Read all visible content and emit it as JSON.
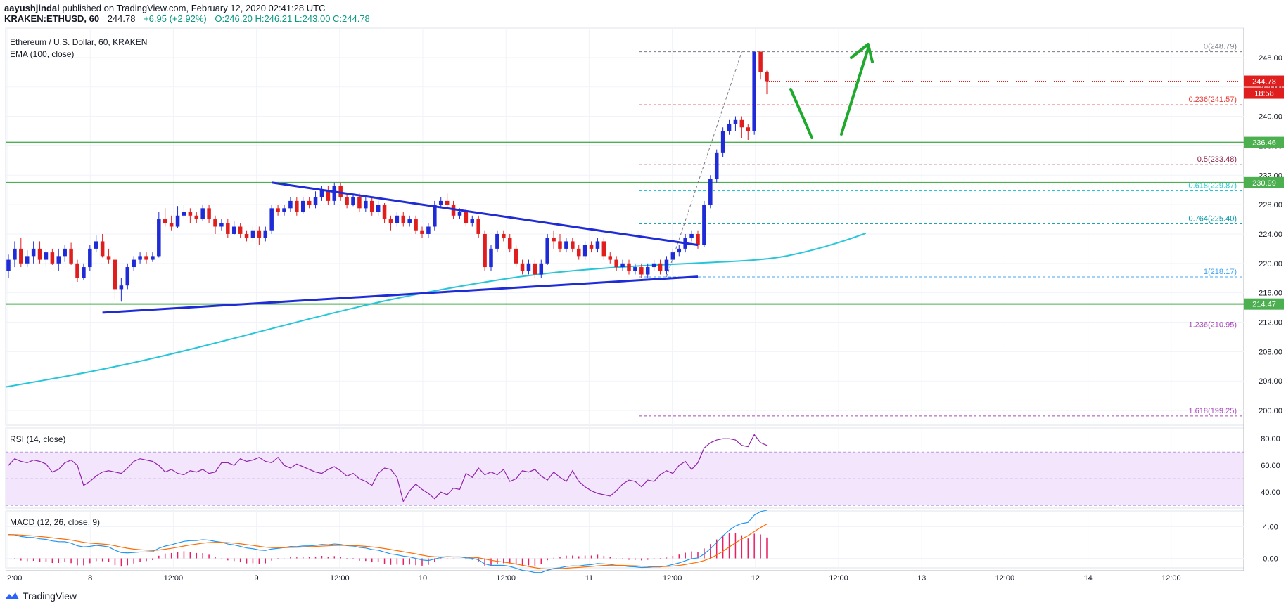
{
  "header": {
    "author": "aayushjindal",
    "published": "published on TradingView.com, February 12, 2020 02:41:28 UTC",
    "symbol": "KRAKEN:ETHUSD, 60",
    "last": "244.78",
    "change": "+6.95 (+2.92%)",
    "ohlc": "O:246.20 H:246.21 L:243.00 C:244.78"
  },
  "chart_data": {
    "type": "candlestick",
    "title": "Ethereum / U.S. Dollar, 60, KRAKEN",
    "indicator": "EMA (100, close)",
    "ylim": [
      198,
      252
    ],
    "y_ticks": [
      200.0,
      204.0,
      208.0,
      212.0,
      216.0,
      220.0,
      224.0,
      228.0,
      232.0,
      236.0,
      240.0,
      244.0,
      248.0
    ],
    "x_ticks": [
      "2:00",
      "8",
      "12:00",
      "9",
      "12:00",
      "10",
      "12:00",
      "11",
      "12:00",
      "12",
      "12:00",
      "13",
      "12:00",
      "14",
      "12:00"
    ],
    "current_price": "244.78",
    "countdown": "18:58",
    "horizontal_levels": [
      {
        "label": "236.46",
        "value": 236.46,
        "color": "#4caf50"
      },
      {
        "label": "230.99",
        "value": 230.99,
        "color": "#4caf50"
      },
      {
        "label": "214.47",
        "value": 214.47,
        "color": "#4caf50"
      }
    ],
    "fib_levels": [
      {
        "label": "0(248.79)",
        "value": 248.79,
        "color": "#787b86"
      },
      {
        "label": "0.236(241.57)",
        "value": 241.57,
        "color": "#e53935"
      },
      {
        "label": "0.5(233.48)",
        "value": 233.48,
        "color": "#8e2449"
      },
      {
        "label": "0.618(229.87)",
        "value": 229.87,
        "color": "#26c6da"
      },
      {
        "label": "0.764(225.40)",
        "value": 225.4,
        "color": "#0097a7"
      },
      {
        "label": "1(218.17)",
        "value": 218.17,
        "color": "#42a5f5"
      },
      {
        "label": "1.236(210.95)",
        "value": 210.95,
        "color": "#ab47bc"
      },
      {
        "label": "1.618(199.25)",
        "value": 199.25,
        "color": "#ab47bc"
      }
    ],
    "candles": [
      [
        219,
        220.5,
        218,
        221.2
      ],
      [
        220.5,
        222,
        219.5,
        223
      ],
      [
        222,
        220,
        219.5,
        223.5
      ],
      [
        220,
        221,
        219.5,
        221.8
      ],
      [
        221,
        222,
        220,
        223
      ],
      [
        222,
        220.5,
        220,
        223
      ],
      [
        220.5,
        221.5,
        219.5,
        222
      ],
      [
        221.5,
        220,
        219.8,
        222
      ],
      [
        220,
        221,
        219,
        222
      ],
      [
        221,
        222,
        220.2,
        222.5
      ],
      [
        222,
        220,
        219.8,
        222.8
      ],
      [
        220,
        218,
        217.5,
        220.5
      ],
      [
        218,
        219.5,
        217.8,
        220
      ],
      [
        219.5,
        222,
        219,
        222.5
      ],
      [
        222,
        223,
        221.5,
        223.8
      ],
      [
        223,
        221,
        220.8,
        224
      ],
      [
        221,
        220.5,
        220,
        222
      ],
      [
        220.5,
        216.5,
        215,
        220.8
      ],
      [
        216.5,
        217,
        214.8,
        218
      ],
      [
        217,
        219.5,
        216.5,
        220
      ],
      [
        219.5,
        220.5,
        219,
        221
      ],
      [
        220.5,
        221,
        220,
        221.5
      ],
      [
        221,
        220.5,
        220,
        221.5
      ],
      [
        220.5,
        221,
        220.2,
        221.5
      ],
      [
        221,
        226,
        220.8,
        227
      ],
      [
        226,
        225.5,
        225,
        227.5
      ],
      [
        225.5,
        225,
        224.5,
        226.5
      ],
      [
        225,
        226.5,
        224.8,
        227.8
      ],
      [
        226.5,
        227,
        226,
        228
      ],
      [
        227,
        226.5,
        225.5,
        227.5
      ],
      [
        226.5,
        226,
        225.5,
        227
      ],
      [
        226,
        227.5,
        225.8,
        228
      ],
      [
        227.5,
        226,
        225.5,
        228
      ],
      [
        226,
        225,
        224,
        226.5
      ],
      [
        225,
        225.5,
        224.5,
        226
      ],
      [
        225.5,
        224,
        223.5,
        226
      ],
      [
        224,
        225,
        223.8,
        225.8
      ],
      [
        225,
        224,
        223.5,
        225.5
      ],
      [
        224,
        223.5,
        223,
        224.5
      ],
      [
        223.5,
        224.5,
        223,
        225
      ],
      [
        224.5,
        223.5,
        222.5,
        225
      ],
      [
        223.5,
        224.5,
        223,
        225
      ],
      [
        224.5,
        227.5,
        224,
        228
      ],
      [
        227.5,
        227,
        226.5,
        228
      ],
      [
        227,
        227.5,
        226.5,
        228
      ],
      [
        227.5,
        228.5,
        227,
        229
      ],
      [
        228.5,
        227,
        226.5,
        229
      ],
      [
        227,
        228.5,
        226.8,
        229
      ],
      [
        228.5,
        228,
        227.5,
        229
      ],
      [
        228,
        229,
        227.5,
        229.8
      ],
      [
        229,
        230,
        228.5,
        230.5
      ],
      [
        230,
        228.5,
        228,
        230.5
      ],
      [
        228.5,
        230.5,
        228,
        231
      ],
      [
        230.5,
        229,
        228.5,
        231
      ],
      [
        229,
        228,
        227.5,
        229.5
      ],
      [
        228,
        229,
        227.8,
        229.5
      ],
      [
        229,
        227.5,
        227,
        229.5
      ],
      [
        227.5,
        228.5,
        227,
        229
      ],
      [
        228.5,
        227,
        226.5,
        229
      ],
      [
        227,
        228,
        226.5,
        228.5
      ],
      [
        228,
        226,
        225.5,
        228.2
      ],
      [
        226,
        225.5,
        224.5,
        226.5
      ],
      [
        225.5,
        226.5,
        225,
        227
      ],
      [
        226.5,
        225.5,
        225,
        227
      ],
      [
        225.5,
        226,
        225,
        226.5
      ],
      [
        226,
        224.5,
        224,
        226.5
      ],
      [
        224.5,
        224,
        223.5,
        225
      ],
      [
        224,
        225,
        223.5,
        225.5
      ],
      [
        225,
        228,
        224.5,
        228.5
      ],
      [
        228,
        228.5,
        227.5,
        229
      ],
      [
        228.5,
        228,
        227.5,
        229.5
      ],
      [
        228,
        226.5,
        226,
        228.5
      ],
      [
        226.5,
        227,
        226,
        227.5
      ],
      [
        227,
        225.5,
        225,
        227.5
      ],
      [
        225.5,
        226,
        225,
        226.5
      ],
      [
        226,
        224,
        223.5,
        226.5
      ],
      [
        224,
        219.5,
        219,
        224.5
      ],
      [
        219.5,
        222,
        219,
        222.5
      ],
      [
        222,
        224,
        221.5,
        224.5
      ],
      [
        224,
        223.5,
        223,
        224.5
      ],
      [
        223.5,
        222,
        221.5,
        224
      ],
      [
        222,
        220,
        219.5,
        222.5
      ],
      [
        220,
        219,
        218.5,
        220.5
      ],
      [
        219,
        220,
        218.5,
        220.5
      ],
      [
        220,
        218.5,
        218,
        220.5
      ],
      [
        218.5,
        220,
        218,
        220.5
      ],
      [
        220,
        223.5,
        219.8,
        224
      ],
      [
        223.5,
        223,
        222,
        224.5
      ],
      [
        223,
        222,
        221.5,
        224
      ],
      [
        222,
        223,
        221.5,
        223.5
      ],
      [
        223,
        222,
        221.5,
        223.5
      ],
      [
        222,
        221,
        220.5,
        222.5
      ],
      [
        221,
        222.5,
        220.5,
        223
      ],
      [
        222.5,
        222,
        221.5,
        223
      ],
      [
        222,
        223,
        221.5,
        223.5
      ],
      [
        223,
        221,
        220.5,
        223.5
      ],
      [
        221,
        220.5,
        220,
        221.5
      ],
      [
        220.5,
        219.5,
        219,
        221
      ],
      [
        219.5,
        220,
        219,
        220.5
      ],
      [
        220,
        219,
        218.5,
        220.5
      ],
      [
        219,
        219.5,
        218.5,
        220
      ],
      [
        219.5,
        218.5,
        218,
        220
      ],
      [
        218.5,
        219.5,
        218,
        220
      ],
      [
        219.5,
        220,
        219,
        220.5
      ],
      [
        220,
        219,
        218.5,
        220.5
      ],
      [
        219,
        220.5,
        218.5,
        221
      ],
      [
        220.5,
        221.5,
        220,
        222
      ],
      [
        221.5,
        222,
        221,
        222.5
      ],
      [
        222,
        223.5,
        221.5,
        224
      ],
      [
        223.5,
        224,
        223,
        224.5
      ],
      [
        224,
        222.5,
        222,
        224.5
      ],
      [
        222.5,
        228,
        222.2,
        228.5
      ],
      [
        228,
        231.5,
        227.5,
        232
      ],
      [
        231.5,
        235,
        231,
        235.5
      ],
      [
        235,
        238,
        234.5,
        238.5
      ],
      [
        238,
        239,
        237.5,
        239.5
      ],
      [
        239,
        239.5,
        238,
        240
      ],
      [
        239.5,
        238.5,
        237,
        240
      ],
      [
        238.5,
        238,
        236.8,
        239
      ],
      [
        238,
        248.8,
        237.5,
        248.8
      ],
      [
        248.8,
        246,
        245,
        248.8
      ],
      [
        246,
        244.78,
        243,
        246.21
      ]
    ],
    "ema": [
      [
        0,
        203.2
      ],
      [
        0.1,
        205
      ],
      [
        0.2,
        207.2
      ],
      [
        0.3,
        209.8
      ],
      [
        0.4,
        212.5
      ],
      [
        0.5,
        215
      ],
      [
        0.6,
        217
      ],
      [
        0.7,
        218.6
      ],
      [
        0.8,
        219.5
      ],
      [
        0.9,
        220
      ],
      [
        1.0,
        220.5
      ],
      [
        1.05,
        221.5
      ],
      [
        1.1,
        223
      ],
      [
        1.13,
        224.1
      ]
    ],
    "rsi": {
      "label": "RSI (14, close)",
      "ylim": [
        28,
        88
      ],
      "ticks": [
        80.0,
        60.0,
        40.0
      ],
      "band": [
        30,
        70
      ],
      "values": [
        60,
        65,
        63,
        62,
        64,
        63,
        61,
        55,
        57,
        62,
        64,
        60,
        45,
        48,
        52,
        55,
        56,
        55,
        54,
        58,
        63,
        65,
        64,
        63,
        60,
        55,
        57,
        54,
        53,
        56,
        55,
        57,
        54,
        55,
        62,
        62,
        60,
        65,
        63,
        64,
        66,
        63,
        62,
        66,
        60,
        58,
        61,
        59,
        57,
        55,
        54,
        57,
        59,
        56,
        52,
        54,
        50,
        48,
        45,
        54,
        58,
        57,
        51,
        33,
        41,
        46,
        42,
        39,
        35,
        40,
        38,
        43,
        42,
        54,
        51,
        58,
        53,
        55,
        53,
        57,
        48,
        50,
        56,
        55,
        57,
        52,
        49,
        55,
        51,
        48,
        56,
        48,
        44,
        41,
        39,
        38,
        37,
        41,
        46,
        49,
        48,
        44,
        49,
        48,
        53,
        56,
        54,
        60,
        63,
        57,
        62,
        73,
        77,
        79,
        80,
        80,
        79,
        75,
        74,
        83,
        77,
        75
      ]
    },
    "macd": {
      "label": "MACD (12, 26, close, 9)",
      "ylim": [
        -1.2,
        6
      ],
      "ticks": [
        4.0,
        0.0
      ]
    }
  },
  "footer": {
    "brand": "TradingView"
  }
}
